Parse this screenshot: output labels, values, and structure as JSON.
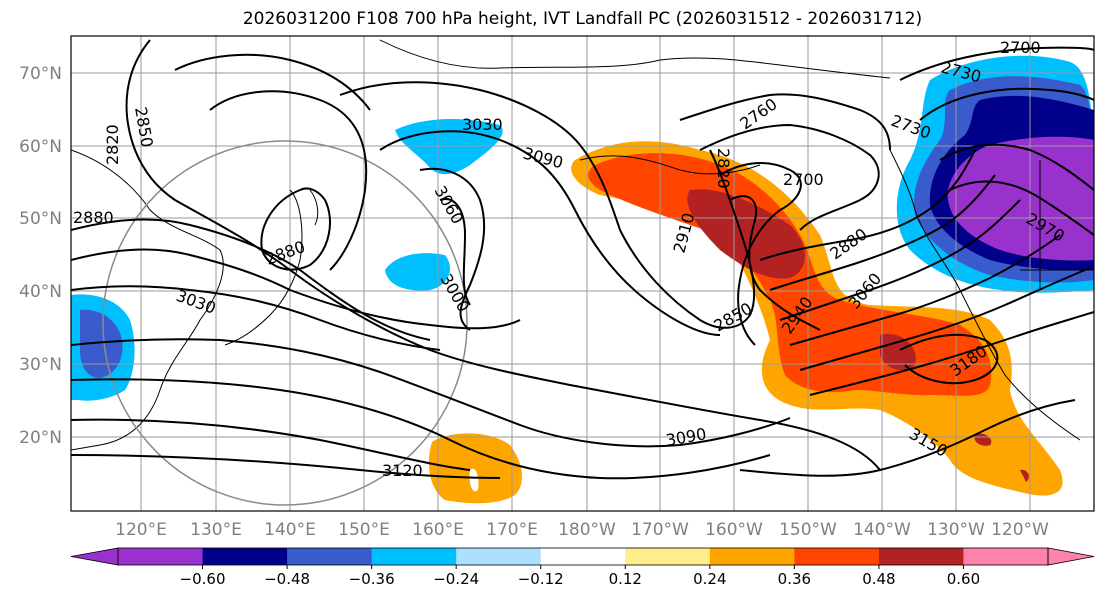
{
  "title": "2026031200 F108 700 hPa height, IVT Landfall PC (2026031512 - 2026031712)",
  "lat_labels": [
    "70°N",
    "60°N",
    "50°N",
    "40°N",
    "30°N",
    "20°N"
  ],
  "lon_labels": [
    "120°E",
    "130°E",
    "140°E",
    "150°E",
    "160°E",
    "170°E",
    "180°W",
    "170°W",
    "160°W",
    "150°W",
    "140°W",
    "130°W",
    "120°W"
  ],
  "contour_labels": [
    "2700",
    "2730",
    "2730",
    "2760",
    "2820",
    "2850",
    "2820",
    "2880",
    "2880",
    "3030",
    "3030",
    "3090",
    "3060",
    "3000",
    "2910",
    "2700",
    "2850",
    "2940",
    "2880",
    "3060",
    "2970",
    "3180",
    "3090",
    "3120",
    "3150"
  ],
  "colorbar": {
    "colors": [
      "#9932CC",
      "#00008B",
      "#3A5BCC",
      "#00BFFF",
      "#ADDFFF",
      "#FFFFFF",
      "#FFEC8B",
      "#FFA500",
      "#FF4500",
      "#B22222",
      "#FF82AB"
    ],
    "tick_labels": [
      "−0.60",
      "−0.48",
      "−0.36",
      "−0.24",
      "−0.12",
      "0.12",
      "0.24",
      "0.36",
      "0.48",
      "0.60"
    ]
  }
}
